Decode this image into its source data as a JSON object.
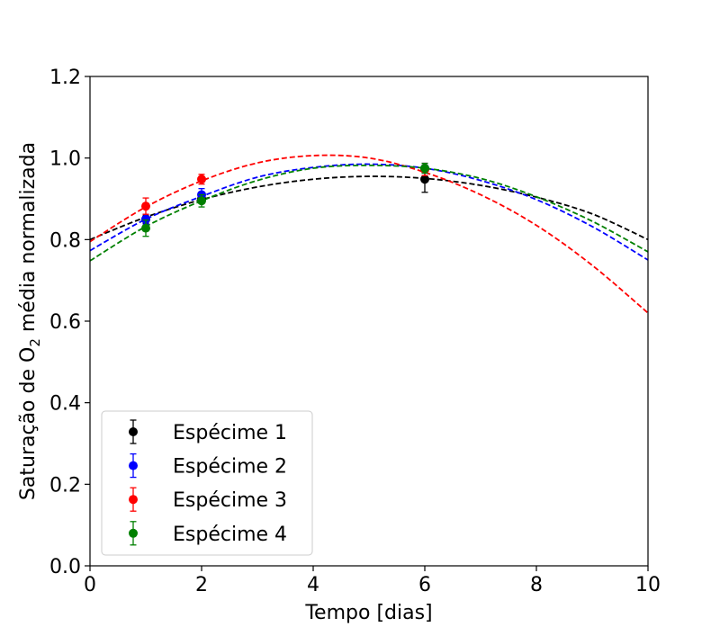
{
  "chart_data": {
    "type": "scatter",
    "xlabel": "Tempo [dias]",
    "ylabel_parts": {
      "prefix": "Saturação de O",
      "subscript": "2",
      "suffix": " média normalizada"
    },
    "xlim": [
      0,
      10
    ],
    "ylim": [
      0.0,
      1.2
    ],
    "xticks": [
      "0",
      "2",
      "4",
      "6",
      "8",
      "10"
    ],
    "yticks": [
      "0.0",
      "0.2",
      "0.4",
      "0.6",
      "0.8",
      "1.0",
      "1.2"
    ],
    "grid": false,
    "legend_position": "lower-left",
    "series": [
      {
        "name": "Espécime 1",
        "color": "#000000",
        "x": [
          1,
          2,
          6
        ],
        "y": [
          0.85,
          0.9,
          0.948
        ],
        "yerr": [
          0.01,
          0.01,
          0.032
        ],
        "fit": [
          0.8,
          0.855,
          0.898,
          0.929,
          0.948,
          0.955,
          0.95,
          0.933,
          0.904,
          0.863,
          0.8
        ]
      },
      {
        "name": "Espécime 2",
        "color": "#0000ff",
        "x": [
          1,
          2,
          6
        ],
        "y": [
          0.85,
          0.91,
          0.975
        ],
        "yerr": [
          0.012,
          0.015,
          0.012
        ],
        "fit": [
          0.773,
          0.85,
          0.906,
          0.953,
          0.977,
          0.985,
          0.975,
          0.945,
          0.898,
          0.832,
          0.75
        ]
      },
      {
        "name": "Espécime 3",
        "color": "#ff0000",
        "x": [
          1,
          2,
          6
        ],
        "y": [
          0.882,
          0.948,
          0.972
        ],
        "yerr": [
          0.02,
          0.012,
          0.015
        ],
        "fit": [
          0.795,
          0.88,
          0.944,
          0.988,
          1.006,
          1.0,
          0.965,
          0.91,
          0.835,
          0.737,
          0.62
        ]
      },
      {
        "name": "Espécime 4",
        "color": "#008000",
        "x": [
          1,
          2,
          6
        ],
        "y": [
          0.828,
          0.895,
          0.975
        ],
        "yerr": [
          0.02,
          0.015,
          0.012
        ],
        "fit": [
          0.748,
          0.832,
          0.895,
          0.945,
          0.975,
          0.982,
          0.975,
          0.95,
          0.905,
          0.845,
          0.77
        ]
      }
    ]
  }
}
